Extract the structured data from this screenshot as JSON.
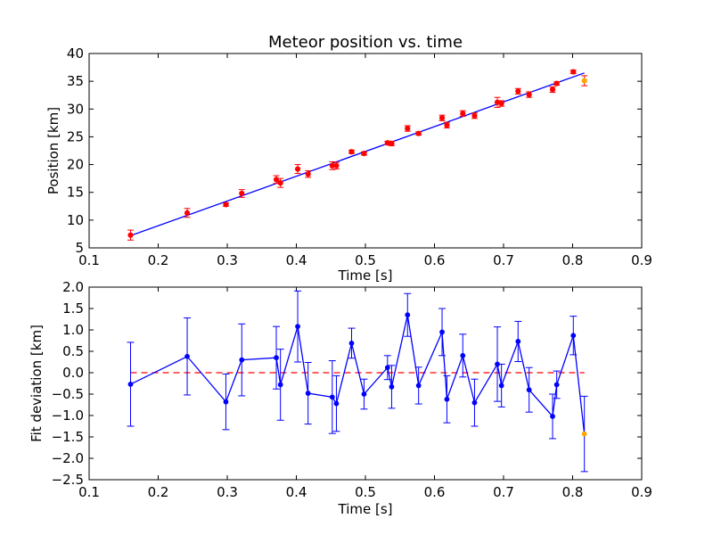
{
  "chart_data": [
    {
      "type": "scatter",
      "title": "Meteor position vs. time",
      "xlabel": "Time [s]",
      "ylabel": "Position [km]",
      "xlim": [
        0.1,
        0.9
      ],
      "ylim": [
        5,
        40
      ],
      "xticks": [
        "0.1",
        "0.2",
        "0.3",
        "0.4",
        "0.5",
        "0.6",
        "0.7",
        "0.8",
        "0.9"
      ],
      "yticks": [
        "5",
        "10",
        "15",
        "20",
        "25",
        "30",
        "35",
        "40"
      ],
      "grid": false,
      "colors": {
        "points": "#ff0000",
        "last_point": "#ffa500",
        "fit_line": "#0000ff",
        "errorbar": "#ff0000"
      },
      "points": [
        {
          "x": 0.16,
          "y": 7.3,
          "err": 0.9
        },
        {
          "x": 0.242,
          "y": 11.3,
          "err": 0.8
        },
        {
          "x": 0.298,
          "y": 12.8,
          "err": 0.3
        },
        {
          "x": 0.321,
          "y": 14.8,
          "err": 0.7
        },
        {
          "x": 0.371,
          "y": 17.3,
          "err": 0.7
        },
        {
          "x": 0.377,
          "y": 16.7,
          "err": 0.8
        },
        {
          "x": 0.402,
          "y": 19.2,
          "err": 0.8
        },
        {
          "x": 0.417,
          "y": 18.3,
          "err": 0.6
        },
        {
          "x": 0.452,
          "y": 19.8,
          "err": 0.7
        },
        {
          "x": 0.458,
          "y": 19.8,
          "err": 0.6
        },
        {
          "x": 0.48,
          "y": 22.3,
          "err": 0.3
        },
        {
          "x": 0.498,
          "y": 22.0,
          "err": 0.3
        },
        {
          "x": 0.532,
          "y": 23.9,
          "err": 0.3
        },
        {
          "x": 0.538,
          "y": 23.8,
          "err": 0.4
        },
        {
          "x": 0.561,
          "y": 26.5,
          "err": 0.5
        },
        {
          "x": 0.577,
          "y": 25.6,
          "err": 0.3
        },
        {
          "x": 0.611,
          "y": 28.4,
          "err": 0.5
        },
        {
          "x": 0.618,
          "y": 27.1,
          "err": 0.5
        },
        {
          "x": 0.641,
          "y": 29.2,
          "err": 0.5
        },
        {
          "x": 0.658,
          "y": 28.8,
          "err": 0.5
        },
        {
          "x": 0.691,
          "y": 31.2,
          "err": 0.9
        },
        {
          "x": 0.697,
          "y": 31.0,
          "err": 0.5
        },
        {
          "x": 0.721,
          "y": 33.2,
          "err": 0.5
        },
        {
          "x": 0.737,
          "y": 32.6,
          "err": 0.5
        },
        {
          "x": 0.771,
          "y": 33.5,
          "err": 0.5
        },
        {
          "x": 0.777,
          "y": 34.6,
          "err": 0.3
        },
        {
          "x": 0.801,
          "y": 36.7,
          "err": 0.3
        },
        {
          "x": 0.817,
          "y": 35.1,
          "err": 0.9
        }
      ],
      "fit_line": {
        "x": [
          0.16,
          0.817
        ],
        "y": [
          7.2,
          36.5
        ]
      }
    },
    {
      "type": "line",
      "title": "",
      "xlabel": "Time [s]",
      "ylabel": "Fit deviation [km]",
      "xlim": [
        0.1,
        0.9
      ],
      "ylim": [
        -2.5,
        2.0
      ],
      "xticks": [
        "0.1",
        "0.2",
        "0.3",
        "0.4",
        "0.5",
        "0.6",
        "0.7",
        "0.8",
        "0.9"
      ],
      "yticks": [
        "−2.5",
        "−2.0",
        "−1.5",
        "−1.0",
        "−0.5",
        "0.0",
        "0.5",
        "1.0",
        "1.5",
        "2.0"
      ],
      "grid": false,
      "colors": {
        "series": "#0000ff",
        "last_point": "#ffa500",
        "reference_line": "#ff0000"
      },
      "reference_line": {
        "y": 0.0,
        "x": [
          0.16,
          0.817
        ]
      },
      "points": [
        {
          "x": 0.16,
          "y": -0.27,
          "err": 0.98
        },
        {
          "x": 0.242,
          "y": 0.38,
          "err": 0.9
        },
        {
          "x": 0.298,
          "y": -0.68,
          "err": 0.65
        },
        {
          "x": 0.321,
          "y": 0.3,
          "err": 0.84
        },
        {
          "x": 0.371,
          "y": 0.35,
          "err": 0.73
        },
        {
          "x": 0.377,
          "y": -0.28,
          "err": 0.83
        },
        {
          "x": 0.402,
          "y": 1.08,
          "err": 0.83
        },
        {
          "x": 0.417,
          "y": -0.48,
          "err": 0.72
        },
        {
          "x": 0.452,
          "y": -0.57,
          "err": 0.85
        },
        {
          "x": 0.458,
          "y": -0.72,
          "err": 0.65
        },
        {
          "x": 0.48,
          "y": 0.69,
          "err": 0.35
        },
        {
          "x": 0.498,
          "y": -0.5,
          "err": 0.35
        },
        {
          "x": 0.532,
          "y": 0.12,
          "err": 0.28
        },
        {
          "x": 0.538,
          "y": -0.33,
          "err": 0.5
        },
        {
          "x": 0.561,
          "y": 1.35,
          "err": 0.5
        },
        {
          "x": 0.577,
          "y": -0.3,
          "err": 0.43
        },
        {
          "x": 0.611,
          "y": 0.95,
          "err": 0.55
        },
        {
          "x": 0.618,
          "y": -0.62,
          "err": 0.55
        },
        {
          "x": 0.641,
          "y": 0.4,
          "err": 0.5
        },
        {
          "x": 0.658,
          "y": -0.7,
          "err": 0.55
        },
        {
          "x": 0.691,
          "y": 0.2,
          "err": 0.87
        },
        {
          "x": 0.697,
          "y": -0.3,
          "err": 0.5
        },
        {
          "x": 0.721,
          "y": 0.73,
          "err": 0.47
        },
        {
          "x": 0.737,
          "y": -0.4,
          "err": 0.52
        },
        {
          "x": 0.771,
          "y": -1.02,
          "err": 0.52
        },
        {
          "x": 0.777,
          "y": -0.28,
          "err": 0.32
        },
        {
          "x": 0.801,
          "y": 0.87,
          "err": 0.45
        },
        {
          "x": 0.817,
          "y": -1.43,
          "err": 0.88
        }
      ]
    }
  ]
}
